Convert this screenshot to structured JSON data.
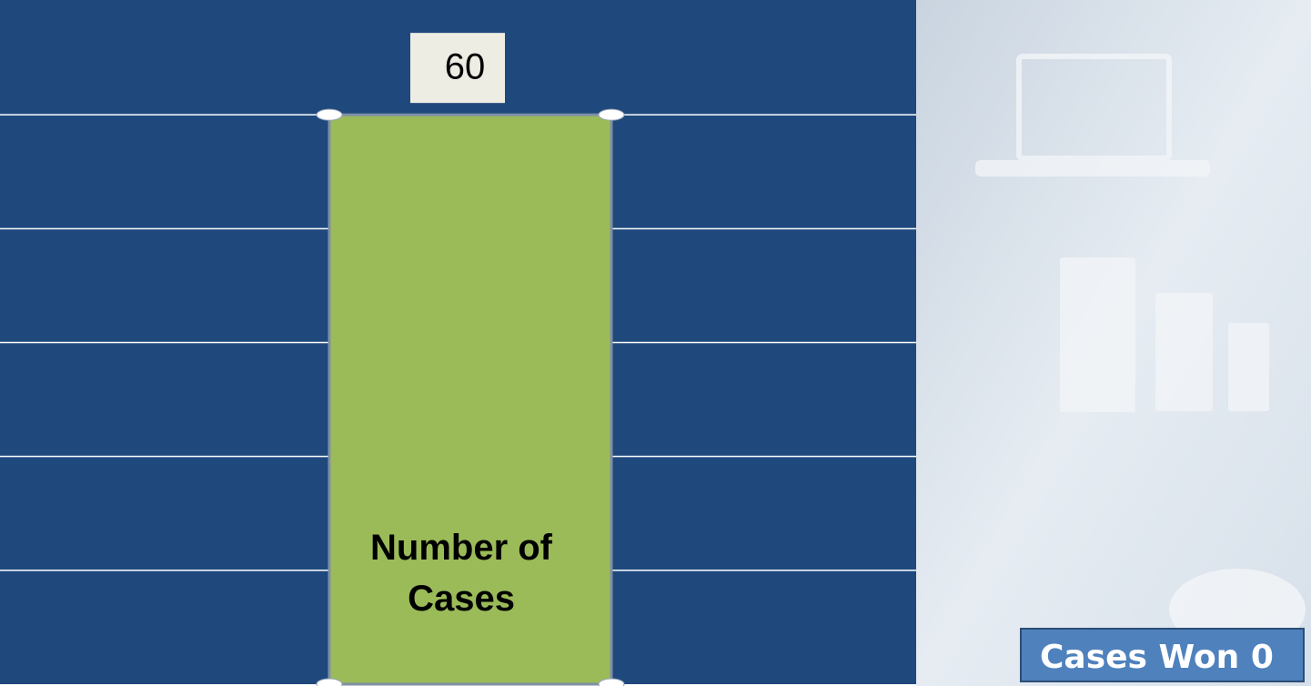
{
  "chart_data": {
    "type": "bar",
    "categories": [
      "Number of Cases"
    ],
    "values": [
      60
    ],
    "color": "#9bbb59",
    "ylim": [
      0,
      72
    ],
    "yticks": [
      12,
      24,
      36,
      48,
      60
    ],
    "grid": true
  },
  "sidebar": {
    "label": "Cases Won 0"
  }
}
